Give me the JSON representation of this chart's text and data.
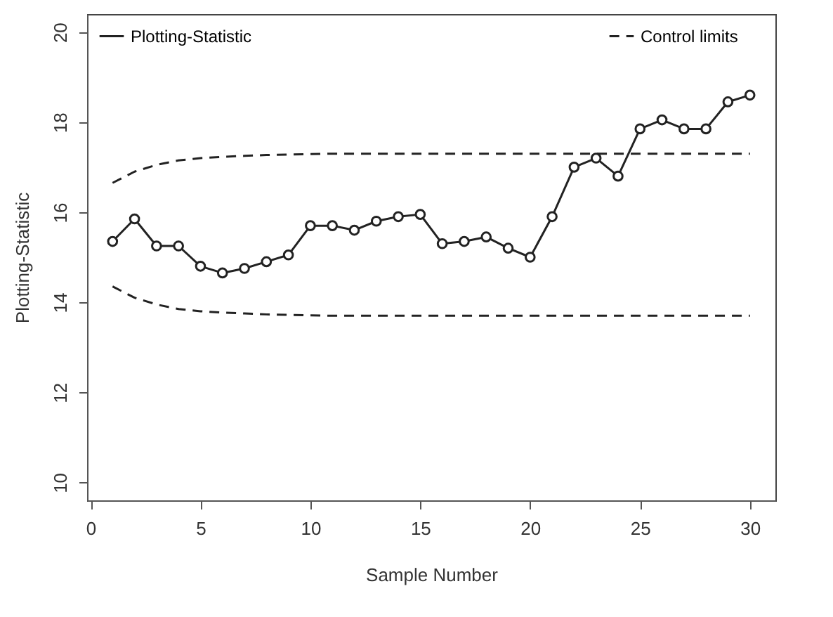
{
  "chart_data": {
    "type": "line",
    "xlabel": "Sample Number",
    "ylabel": "Plotting-Statistic",
    "xlim": [
      -0.16,
      31.16
    ],
    "xticks": [
      0,
      5,
      10,
      15,
      20,
      25,
      30
    ],
    "ylim": [
      9.6,
      20.4
    ],
    "yticks": [
      10,
      12,
      14,
      16,
      18,
      20
    ],
    "grid": false,
    "legend": "top",
    "x": [
      1,
      2,
      3,
      4,
      5,
      6,
      7,
      8,
      9,
      10,
      11,
      12,
      13,
      14,
      15,
      16,
      17,
      18,
      19,
      20,
      21,
      22,
      23,
      24,
      25,
      26,
      27,
      28,
      29,
      30
    ],
    "series": [
      {
        "name": "Plotting-Statistic",
        "color": "#222222",
        "marker": "circle",
        "line_style": "solid",
        "values": [
          15.35,
          15.85,
          15.25,
          15.25,
          14.8,
          14.65,
          14.75,
          14.9,
          15.05,
          15.7,
          15.7,
          15.6,
          15.8,
          15.9,
          15.95,
          15.3,
          15.35,
          15.45,
          15.2,
          15.0,
          15.9,
          17.0,
          17.2,
          16.8,
          17.85,
          18.05,
          17.85,
          17.85,
          18.45,
          18.6
        ]
      },
      {
        "name": "Control limits",
        "color": "#222222",
        "marker": "none",
        "line_style": "dashed",
        "values": [
          16.65,
          16.9,
          17.05,
          17.15,
          17.2,
          17.23,
          17.25,
          17.27,
          17.28,
          17.29,
          17.3,
          17.3,
          17.3,
          17.3,
          17.3,
          17.3,
          17.3,
          17.3,
          17.3,
          17.3,
          17.3,
          17.3,
          17.3,
          17.3,
          17.3,
          17.3,
          17.3,
          17.3,
          17.3,
          17.3
        ]
      },
      {
        "color": "#222222",
        "marker": "none",
        "line_style": "dashed",
        "values": [
          14.35,
          14.1,
          13.95,
          13.85,
          13.8,
          13.77,
          13.75,
          13.73,
          13.72,
          13.71,
          13.7,
          13.7,
          13.7,
          13.7,
          13.7,
          13.7,
          13.7,
          13.7,
          13.7,
          13.7,
          13.7,
          13.7,
          13.7,
          13.7,
          13.7,
          13.7,
          13.7,
          13.7,
          13.7,
          13.7
        ]
      }
    ]
  }
}
